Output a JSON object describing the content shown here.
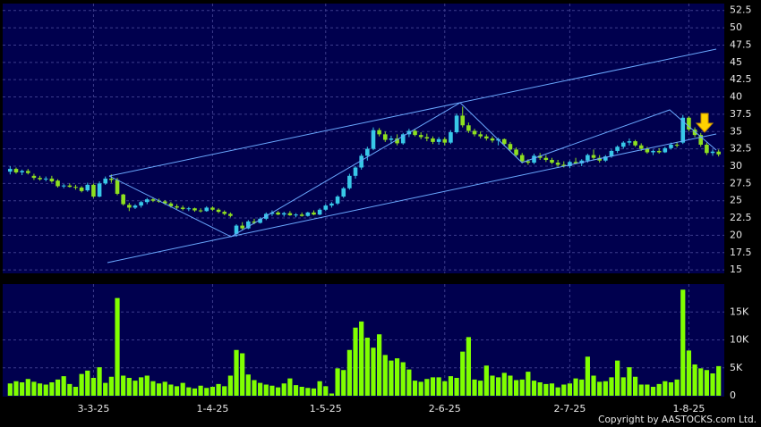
{
  "chart_data": {
    "type": "candlestick",
    "footer": "Copyright by AASTOCKS.com Ltd.",
    "up_color": "#38c8e8",
    "down_color": "#8ee020",
    "volume_color": "#80ff00",
    "grid": true,
    "ylim": [
      14.5,
      53.5
    ],
    "yticks": [
      15,
      17.5,
      20,
      22.5,
      25,
      27.5,
      30,
      32.5,
      35,
      37.5,
      40,
      42.5,
      45,
      47.5,
      50,
      52.5
    ],
    "volume_ylim": [
      0,
      20000
    ],
    "volume_yticks": [
      0,
      {
        "value": 5000,
        "label": "5K"
      },
      {
        "value": 10000,
        "label": "10K"
      },
      {
        "value": 15000,
        "label": "15K"
      }
    ],
    "categories": [
      null,
      null,
      null,
      null,
      null,
      null,
      null,
      null,
      null,
      null,
      null,
      null,
      null,
      null,
      "3-3-25",
      null,
      null,
      null,
      null,
      null,
      null,
      null,
      null,
      null,
      null,
      null,
      null,
      null,
      null,
      null,
      null,
      null,
      null,
      null,
      "1-4-25",
      null,
      null,
      null,
      null,
      null,
      null,
      null,
      null,
      null,
      null,
      null,
      null,
      null,
      null,
      null,
      null,
      null,
      null,
      "1-5-25",
      null,
      null,
      null,
      null,
      null,
      null,
      null,
      null,
      null,
      null,
      null,
      null,
      null,
      null,
      null,
      null,
      null,
      null,
      null,
      "2-6-25",
      null,
      null,
      null,
      null,
      null,
      null,
      null,
      null,
      null,
      null,
      null,
      null,
      null,
      null,
      null,
      null,
      null,
      null,
      null,
      null,
      "2-7-25",
      null,
      null,
      null,
      null,
      null,
      null,
      null,
      null,
      null,
      null,
      null,
      null,
      null,
      null,
      null,
      null,
      null,
      null,
      null,
      "1-8-25",
      null,
      null,
      null,
      null,
      null
    ],
    "ohlc": [
      [
        29.2,
        30,
        28.8,
        29.6
      ],
      [
        29.6,
        29.8,
        28.9,
        29.1
      ],
      [
        29.1,
        29.5,
        28.7,
        29.3
      ],
      [
        29.3,
        29.6,
        28.8,
        29.0
      ],
      [
        28.6,
        28.9,
        28.0,
        28.3
      ],
      [
        28.3,
        28.6,
        27.9,
        28.1
      ],
      [
        28.1,
        28.5,
        27.8,
        28.2
      ],
      [
        28.2,
        28.6,
        27.6,
        27.8
      ],
      [
        27.9,
        28.1,
        26.9,
        27.1
      ],
      [
        27.1,
        27.4,
        26.8,
        27.2
      ],
      [
        27.2,
        27.5,
        26.9,
        27.0
      ],
      [
        27.0,
        27.3,
        26.6,
        26.9
      ],
      [
        26.9,
        27.1,
        26.2,
        26.4
      ],
      [
        26.5,
        27.6,
        26.3,
        27.3
      ],
      [
        27.3,
        27.5,
        25.4,
        25.6
      ],
      [
        25.6,
        27.8,
        25.5,
        27.5
      ],
      [
        27.5,
        28.5,
        27.3,
        28.2
      ],
      [
        28.2,
        28.8,
        27.6,
        28.0
      ],
      [
        28.0,
        28.3,
        25.8,
        26.0
      ],
      [
        25.9,
        26.0,
        24.3,
        24.5
      ],
      [
        24.4,
        24.7,
        23.5,
        24.0
      ],
      [
        24.0,
        24.5,
        23.8,
        24.3
      ],
      [
        24.3,
        25.0,
        24.0,
        24.8
      ],
      [
        24.8,
        25.4,
        24.5,
        25.2
      ],
      [
        25.2,
        25.5,
        24.8,
        25.0
      ],
      [
        25.0,
        25.3,
        24.7,
        24.9
      ],
      [
        24.9,
        25.1,
        24.4,
        24.6
      ],
      [
        24.6,
        24.8,
        24.0,
        24.2
      ],
      [
        24.2,
        24.5,
        23.8,
        24.0
      ],
      [
        24.0,
        24.3,
        23.6,
        23.8
      ],
      [
        23.8,
        24.1,
        23.5,
        23.9
      ],
      [
        23.9,
        24.0,
        23.4,
        23.6
      ],
      [
        23.6,
        23.9,
        23.3,
        23.5
      ],
      [
        23.5,
        24.2,
        23.4,
        24.0
      ],
      [
        24.0,
        24.2,
        23.5,
        23.7
      ],
      [
        23.7,
        23.9,
        23.2,
        23.4
      ],
      [
        23.4,
        23.6,
        22.9,
        23.1
      ],
      [
        23.1,
        23.3,
        22.6,
        22.8
      ],
      [
        20.2,
        21.6,
        19.8,
        21.4
      ],
      [
        21.4,
        21.9,
        20.8,
        21.0
      ],
      [
        21.0,
        22.2,
        20.9,
        22.0
      ],
      [
        22.0,
        22.4,
        21.6,
        21.8
      ],
      [
        21.8,
        22.6,
        21.7,
        22.4
      ],
      [
        22.4,
        23.3,
        22.2,
        23.1
      ],
      [
        23.1,
        23.6,
        22.8,
        23.3
      ],
      [
        23.3,
        23.5,
        22.9,
        23.0
      ],
      [
        23.0,
        23.4,
        22.7,
        23.2
      ],
      [
        23.2,
        23.5,
        22.8,
        22.9
      ],
      [
        22.9,
        23.2,
        22.6,
        23.0
      ],
      [
        23.0,
        23.3,
        22.7,
        22.8
      ],
      [
        22.8,
        23.4,
        22.7,
        23.3
      ],
      [
        23.3,
        23.6,
        22.9,
        23.0
      ],
      [
        23.0,
        23.9,
        22.9,
        23.7
      ],
      [
        23.7,
        24.5,
        23.5,
        24.3
      ],
      [
        24.3,
        24.8,
        24.0,
        24.6
      ],
      [
        24.6,
        25.8,
        24.4,
        25.6
      ],
      [
        25.6,
        27.0,
        25.4,
        26.8
      ],
      [
        26.8,
        28.9,
        26.6,
        28.6
      ],
      [
        28.6,
        30.0,
        28.2,
        29.8
      ],
      [
        29.8,
        31.8,
        29.5,
        31.5
      ],
      [
        31.5,
        32.8,
        30.8,
        32.5
      ],
      [
        32.5,
        35.6,
        32.3,
        35.2
      ],
      [
        35.2,
        35.5,
        34.3,
        34.6
      ],
      [
        34.6,
        35.0,
        33.5,
        33.8
      ],
      [
        33.8,
        34.4,
        33.2,
        34.0
      ],
      [
        34.0,
        34.6,
        33.0,
        33.3
      ],
      [
        33.3,
        34.8,
        33.1,
        34.6
      ],
      [
        34.6,
        35.4,
        34.2,
        35.1
      ],
      [
        35.1,
        35.3,
        34.3,
        34.5
      ],
      [
        34.5,
        34.9,
        33.9,
        34.2
      ],
      [
        34.2,
        34.7,
        33.6,
        34.0
      ],
      [
        34.0,
        34.3,
        33.2,
        33.5
      ],
      [
        33.5,
        34.2,
        33.1,
        33.9
      ],
      [
        33.9,
        34.2,
        33.0,
        33.4
      ],
      [
        33.4,
        35.2,
        33.2,
        34.9
      ],
      [
        34.9,
        37.6,
        34.7,
        37.3
      ],
      [
        37.3,
        38.6,
        35.6,
        35.9
      ],
      [
        35.9,
        36.3,
        34.8,
        35.1
      ],
      [
        35.1,
        35.4,
        34.3,
        34.6
      ],
      [
        34.6,
        35.0,
        34.0,
        34.3
      ],
      [
        34.3,
        34.6,
        33.7,
        34.0
      ],
      [
        34.0,
        34.3,
        33.4,
        33.7
      ],
      [
        33.7,
        34.1,
        33.0,
        33.9
      ],
      [
        33.9,
        34.0,
        32.9,
        33.2
      ],
      [
        33.2,
        33.5,
        32.2,
        32.4
      ],
      [
        32.4,
        32.7,
        31.4,
        31.6
      ],
      [
        31.6,
        31.9,
        30.4,
        30.7
      ],
      [
        30.7,
        31.0,
        30.2,
        30.5
      ],
      [
        30.5,
        31.8,
        30.3,
        31.5
      ],
      [
        31.5,
        31.9,
        30.9,
        31.2
      ],
      [
        31.2,
        31.6,
        30.6,
        30.9
      ],
      [
        30.9,
        31.2,
        30.3,
        30.5
      ],
      [
        30.5,
        30.9,
        29.9,
        30.2
      ],
      [
        30.2,
        30.7,
        29.8,
        30.0
      ],
      [
        30.0,
        30.8,
        29.7,
        30.6
      ],
      [
        30.6,
        31.2,
        30.3,
        30.4
      ],
      [
        30.4,
        31.0,
        30.0,
        30.8
      ],
      [
        30.8,
        31.8,
        30.5,
        31.6
      ],
      [
        31.6,
        32.4,
        30.9,
        31.2
      ],
      [
        31.2,
        31.6,
        30.5,
        30.8
      ],
      [
        30.8,
        31.6,
        30.6,
        31.4
      ],
      [
        31.4,
        32.4,
        31.2,
        32.2
      ],
      [
        32.2,
        33.0,
        31.9,
        32.8
      ],
      [
        32.8,
        33.6,
        32.5,
        33.4
      ],
      [
        33.4,
        34.0,
        33.0,
        33.6
      ],
      [
        33.6,
        33.8,
        32.8,
        33.0
      ],
      [
        33.0,
        33.3,
        32.2,
        32.5
      ],
      [
        32.5,
        32.8,
        31.8,
        32.0
      ],
      [
        32.0,
        32.4,
        31.6,
        32.2
      ],
      [
        32.2,
        32.6,
        31.8,
        32.0
      ],
      [
        32.0,
        32.8,
        31.9,
        32.6
      ],
      [
        32.6,
        33.4,
        32.4,
        33.1
      ],
      [
        33.1,
        33.5,
        32.7,
        33.0
      ],
      [
        33.4,
        37.4,
        33.2,
        37.0
      ],
      [
        37.0,
        37.2,
        35.0,
        35.3
      ],
      [
        35.3,
        35.6,
        34.2,
        34.5
      ],
      [
        34.5,
        34.8,
        32.8,
        33.1
      ],
      [
        33.1,
        33.4,
        31.6,
        31.9
      ],
      [
        31.9,
        32.4,
        31.5,
        32.1
      ],
      [
        32.1,
        32.4,
        31.4,
        31.7
      ]
    ],
    "volume": [
      2200,
      2600,
      2400,
      3000,
      2500,
      2200,
      2000,
      2400,
      2900,
      3500,
      2100,
      1600,
      3900,
      4500,
      3200,
      5100,
      2300,
      3400,
      17500,
      3600,
      3200,
      2700,
      3300,
      3600,
      2600,
      2200,
      2500,
      2000,
      1700,
      2300,
      1500,
      1300,
      1800,
      1400,
      1600,
      2100,
      1700,
      3600,
      8200,
      7600,
      3800,
      2800,
      2300,
      2000,
      1800,
      1500,
      2200,
      3100,
      1900,
      1600,
      1400,
      1300,
      2600,
      1700,
      400,
      4900,
      4600,
      8200,
      12200,
      13300,
      10400,
      8600,
      11000,
      7300,
      6300,
      6700,
      6000,
      4700,
      2700,
      2500,
      3000,
      3300,
      3300,
      2600,
      3500,
      3200,
      7900,
      10500,
      2900,
      2700,
      5400,
      3600,
      3300,
      4100,
      3600,
      2800,
      2900,
      4300,
      2700,
      2400,
      2100,
      2200,
      1500,
      2000,
      2200,
      3100,
      2900,
      7000,
      3600,
      2500,
      2600,
      3300,
      6300,
      3300,
      5100,
      3400,
      2000,
      2000,
      1600,
      2100,
      2600,
      2400,
      2900,
      19000,
      8100,
      5600,
      4900,
      4600,
      4000,
      5300
    ]
  }
}
